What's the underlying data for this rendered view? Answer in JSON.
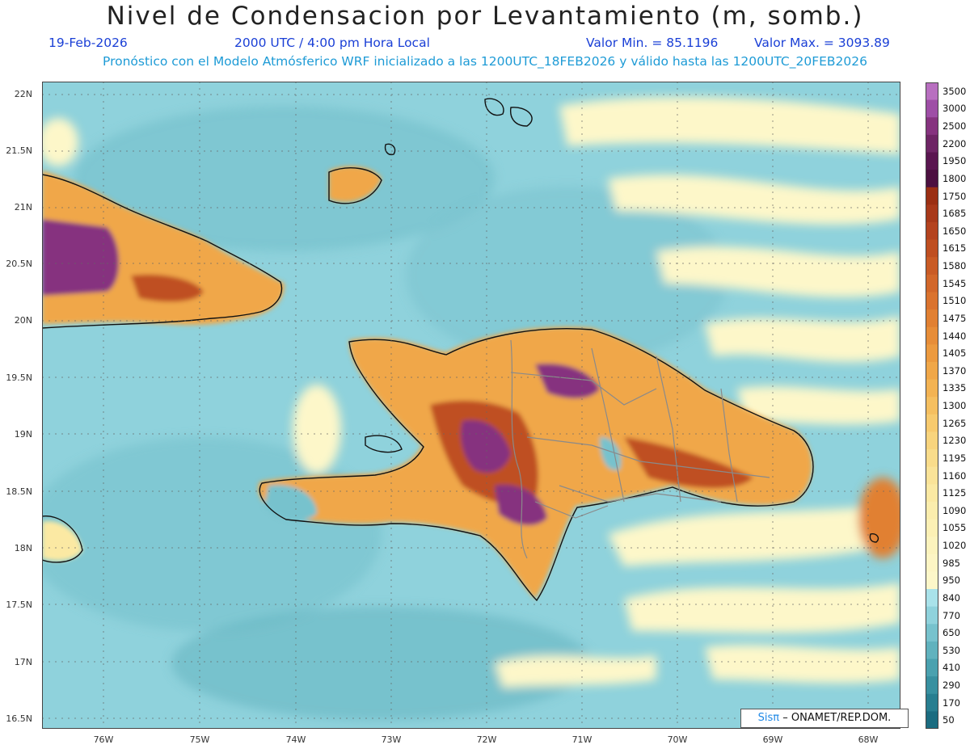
{
  "header": {
    "title": "Nivel de Condensacion por Levantamiento (m, somb.)",
    "date": "19-Feb-2026",
    "time": "2000 UTC / 4:00 pm Hora Local",
    "min_label": "Valor Min. = 85.1196",
    "max_label": "Valor Max. = 3093.89",
    "model_info": "Pronóstico con el Modelo Atmósferico WRF inicializado a las 1200UTC_18FEB2026 y válido hasta las  1200UTC_20FEB2026"
  },
  "axes": {
    "lat_labels": [
      "22N",
      "21.5N",
      "21N",
      "20.5N",
      "20N",
      "19.5N",
      "19N",
      "18.5N",
      "18N",
      "17.5N",
      "17N",
      "16.5N"
    ],
    "lon_labels": [
      "76W",
      "75W",
      "74W",
      "73W",
      "72W",
      "71W",
      "70W",
      "69W",
      "68W"
    ]
  },
  "colorbar": {
    "labels": [
      "3500",
      "3000",
      "2500",
      "2200",
      "1950",
      "1800",
      "1750",
      "1685",
      "1650",
      "1615",
      "1580",
      "1545",
      "1510",
      "1475",
      "1440",
      "1405",
      "1370",
      "1335",
      "1300",
      "1265",
      "1230",
      "1195",
      "1160",
      "1125",
      "1090",
      "1055",
      "1020",
      "985",
      "950",
      "840",
      "770",
      "650",
      "530",
      "410",
      "290",
      "170",
      "50"
    ],
    "colors": [
      "#b86fc0",
      "#9e4ea6",
      "#86337f",
      "#6e2565",
      "#5a1650",
      "#4c1040",
      "#9b2f13",
      "#a8391a",
      "#b4431f",
      "#bf4f21",
      "#c95b25",
      "#d2672a",
      "#da732e",
      "#e18032",
      "#e78d38",
      "#ec9a3f",
      "#f0a748",
      "#f3b353",
      "#f5bf60",
      "#f7ca6e",
      "#f8d47d",
      "#f9dc8b",
      "#fae398",
      "#fbe9a3",
      "#fbedad",
      "#fcf0b5",
      "#fcf3bd",
      "#fdf5c4",
      "#fdf7c9",
      "#a9e2ea",
      "#8fd2dc",
      "#77c2cd",
      "#60b2be",
      "#4aa1af",
      "#3890a0",
      "#287e90",
      "#1b6c80"
    ]
  },
  "credit": {
    "prefix": "Sisπ",
    "text": "– ONAMET/REP.DOM."
  }
}
